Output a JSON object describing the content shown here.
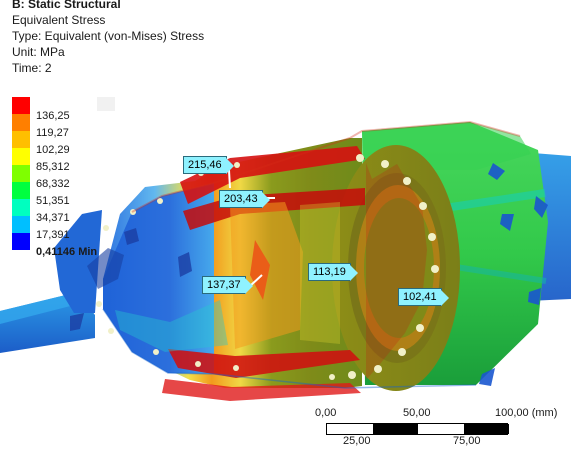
{
  "header": {
    "title": "B: Static Structural",
    "result_name": "Equivalent Stress",
    "type_line": "Type: Equivalent (von-Mises) Stress",
    "unit_line": "Unit: MPa",
    "time_line": "Time: 2"
  },
  "legend": {
    "max_label": "",
    "entries": [
      "136,25",
      "119,27",
      "102,29",
      "85,312",
      "68,332",
      "51,351",
      "34,371",
      "17,391"
    ],
    "min_label": "0,41146 Min",
    "colors": [
      "#ff0000",
      "#ff7f00",
      "#ffbf00",
      "#ffff00",
      "#7fff00",
      "#00ff3f",
      "#00ffbf",
      "#00bfff",
      "#0000ff"
    ]
  },
  "probes": [
    "215,46",
    "203,43",
    "137,37",
    "113,19",
    "102,41"
  ],
  "scale_bar": {
    "labels_top": [
      "0,00",
      "50,00",
      "100,00 (mm)"
    ],
    "labels_bottom": [
      "25,00",
      "75,00"
    ]
  },
  "model_colors": {
    "dark_blue": "#0b3ea8",
    "blue": "#1e63d8",
    "light_blue": "#3b8ee6",
    "teal": "#1fc8b8",
    "green": "#2fd75a",
    "green_dark": "#139c3b",
    "olive": "#7f8b19",
    "yellow": "#e8e12a",
    "orange": "#f29a1d",
    "red": "#e61414",
    "dark_red": "#8d0000",
    "cyan_probe": "#8ff2ff"
  }
}
